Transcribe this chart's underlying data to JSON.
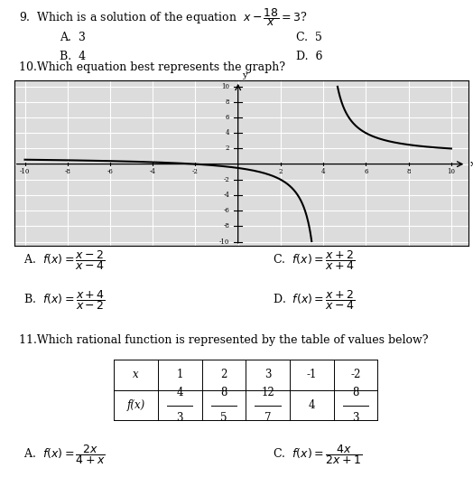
{
  "bg_color": "#ffffff",
  "plot_bg": "#dcdcdc",
  "q9_line1": "9.  Which is a solution of the equation  $x-\\dfrac{18}{x}=3$?",
  "q9_A": "A.  3",
  "q9_B": "B.  4",
  "q9_C": "C.  5",
  "q9_D": "D.  6",
  "q10_title": "10.Which equation best represents the graph?",
  "q10_A": "A.  $f(x)=\\dfrac{x-2}{x-4}$",
  "q10_B": "B.  $f(x)=\\dfrac{x+4}{x-2}$",
  "q10_C": "C.  $f(x)=\\dfrac{x+2}{x+4}$",
  "q10_D": "D.  $f(x)=\\dfrac{x+2}{x-4}$",
  "q11_title": "11.Which rational function is represented by the table of values below?",
  "q11_A": "A.  $f(x)=\\dfrac{2x}{4+x}$",
  "q11_C": "C.  $f(x)=\\dfrac{4x}{2x+1}$",
  "table_row1": [
    "x",
    "1",
    "2",
    "3",
    "-1",
    "-2"
  ],
  "table_row2_num": [
    "f(x)",
    "4",
    "8",
    "12",
    "4",
    "8"
  ],
  "table_row2_den": [
    "",
    "3",
    "5",
    "7",
    "",
    "3"
  ],
  "fontsize_main": 9.0,
  "fontsize_small": 8.5,
  "curve_color": "#000000"
}
